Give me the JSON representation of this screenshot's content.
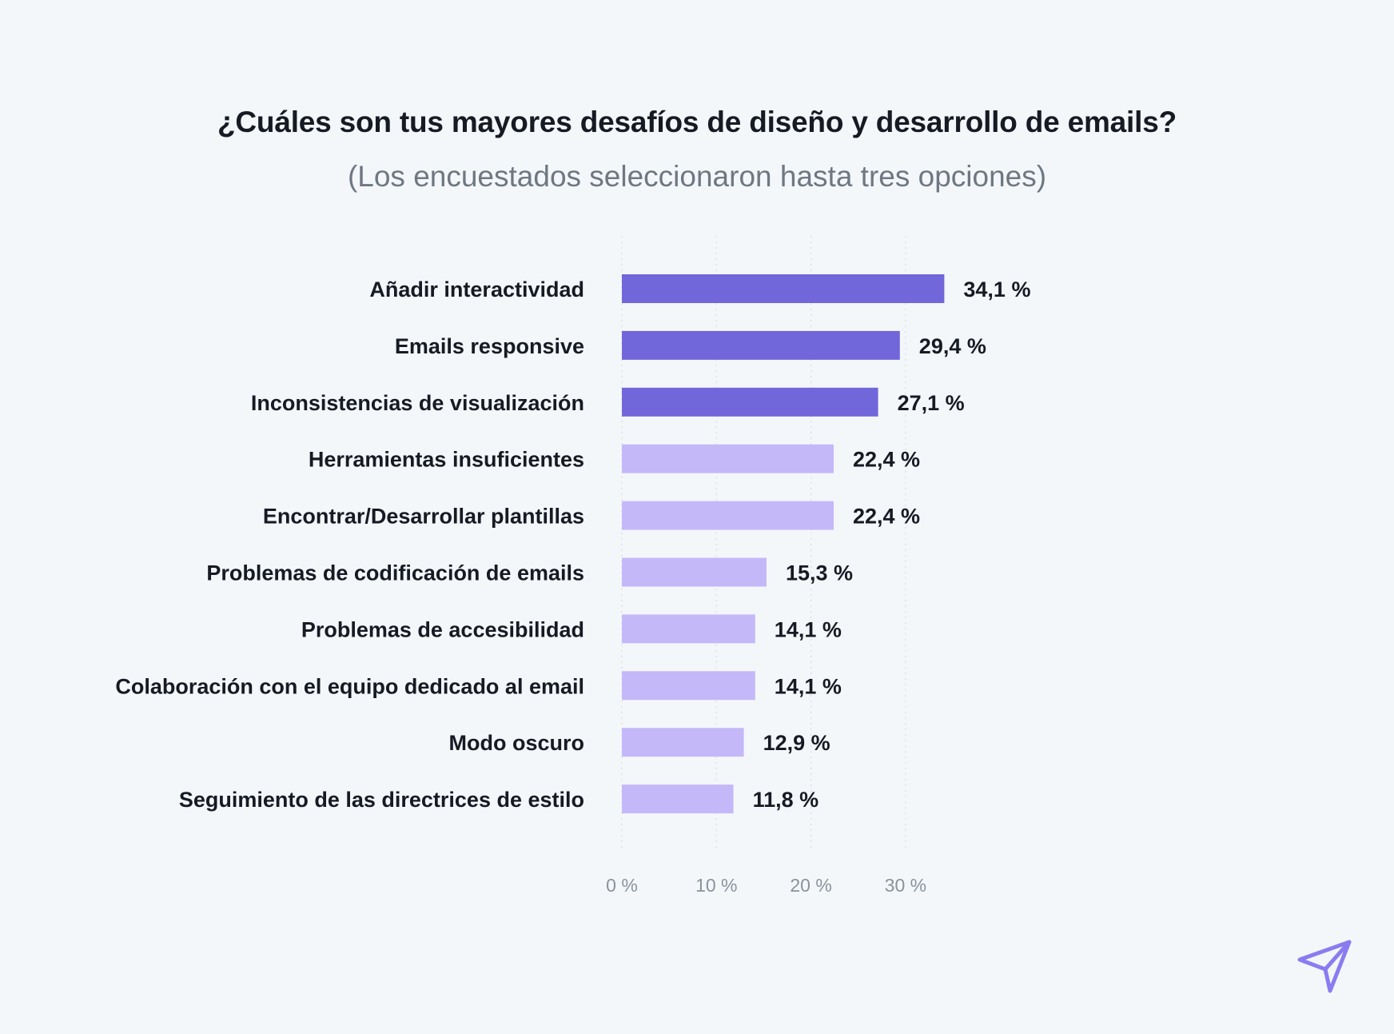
{
  "chart_data": {
    "type": "bar",
    "orientation": "horizontal",
    "title": "¿Cuáles son tus mayores desafíos de diseño y desarrollo de emails?",
    "subtitle": "(Los encuestados seleccionaron hasta tres opciones)",
    "categories": [
      "Añadir interactividad",
      "Emails responsive",
      "Inconsistencias de visualización",
      "Herramientas insuficientes",
      "Encontrar/Desarrollar plantillas",
      "Problemas de codificación de emails",
      "Problemas de accesibilidad",
      "Colaboración con el equipo dedicado al email",
      "Modo oscuro",
      "Seguimiento de las directrices de estilo"
    ],
    "values": [
      34.1,
      29.4,
      27.1,
      22.4,
      22.4,
      15.3,
      14.1,
      14.1,
      12.9,
      11.8
    ],
    "value_labels": [
      "34,1 %",
      "29,4 %",
      "27,1 %",
      "22,4 %",
      "22,4 %",
      "15,3 %",
      "14,1 %",
      "14,1 %",
      "12,9 %",
      "11,8 %"
    ],
    "highlight": [
      true,
      true,
      true,
      false,
      false,
      false,
      false,
      false,
      false,
      false
    ],
    "xlim": [
      0,
      35
    ],
    "xticks": [
      0,
      10,
      20,
      30
    ],
    "xtick_labels": [
      "0 %",
      "10 %",
      "20 %",
      "30 %"
    ],
    "xlabel": "",
    "ylabel": "",
    "grid": true
  },
  "colors": {
    "background": "#f4f7fa",
    "bar_highlight": "#7166da",
    "bar_default": "#c5b8f9",
    "label_text": "#161a23",
    "tick_text": "#8a929c",
    "grid": "#d7dbe0",
    "logo": "#8a7cf0"
  },
  "logo": {
    "icon": "paper-plane-icon"
  }
}
